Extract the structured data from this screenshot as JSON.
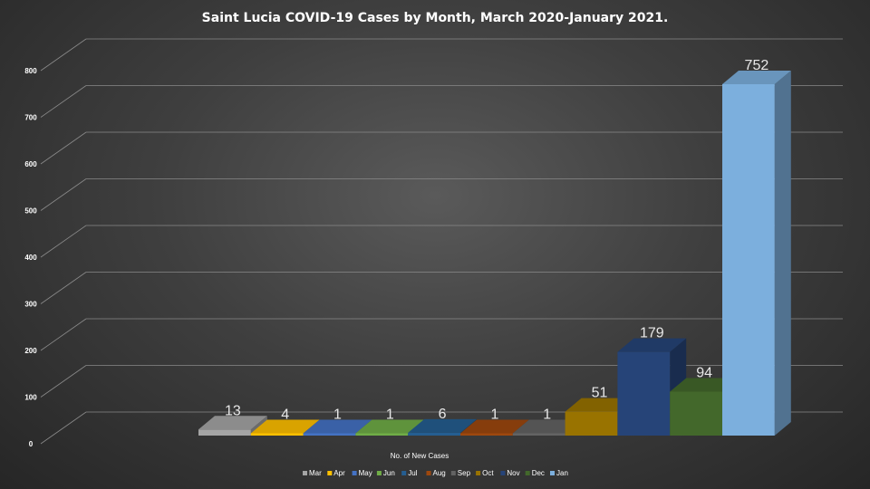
{
  "chart_data": {
    "type": "bar",
    "title": "Saint Lucia COVID-19 Cases by Month, March 2020-January 2021.",
    "xlabel": "No. of New Cases",
    "ylabel": "",
    "ylim": [
      0,
      800
    ],
    "yticks": [
      0,
      100,
      200,
      300,
      400,
      500,
      600,
      700,
      800
    ],
    "grid": true,
    "legend": "bottom",
    "categories": [
      "Mar",
      "Apr",
      "May",
      "Jun",
      "Jul",
      "Aug",
      "Sep",
      "Oct",
      "Nov",
      "Dec",
      "Jan"
    ],
    "values": [
      13,
      4,
      1,
      1,
      6,
      1,
      1,
      51,
      179,
      94,
      752
    ],
    "colors": [
      "#a5a5a5",
      "#ffc000",
      "#4472c4",
      "#70ad47",
      "#255e91",
      "#9e480e",
      "#636363",
      "#997300",
      "#264478",
      "#43682b",
      "#7cafdd"
    ]
  }
}
